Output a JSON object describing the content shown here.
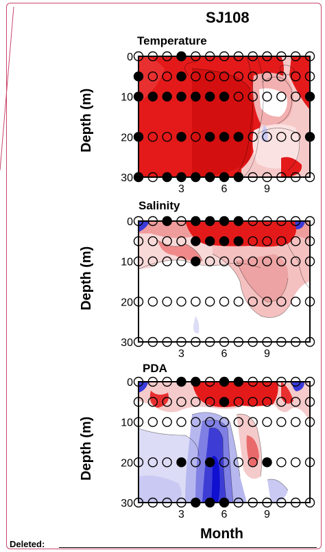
{
  "site_title": "SJ108",
  "panels": [
    {
      "title": "Temperature",
      "ylabel": "Depth (m)"
    },
    {
      "title": "Salinity",
      "ylabel": "Depth (m)"
    },
    {
      "title": "PDA",
      "ylabel": "Depth (m)"
    }
  ],
  "xlabel": "Month",
  "deleted_label": "Deleted:",
  "colors": {
    "high": "#e81010",
    "low": "#1010e0",
    "mid": "#ffffff",
    "border": "#c9446a"
  },
  "chart_data": [
    {
      "type": "heatmap",
      "title": "Temperature",
      "ylabel": "Depth (m)",
      "xlim": [
        0,
        12
      ],
      "ylim": [
        30,
        0
      ],
      "xticks": [
        3,
        6,
        9
      ],
      "yticks": [
        0,
        10,
        20,
        30
      ],
      "sample_depths": [
        0,
        5,
        10,
        20,
        30
      ],
      "sample_months": [
        0,
        1,
        2,
        3,
        4,
        5,
        6,
        7,
        8,
        9,
        10,
        11,
        12
      ],
      "filled_samples": [
        [
          3,
          0
        ],
        [
          0,
          5
        ],
        [
          3,
          5
        ],
        [
          0,
          10
        ],
        [
          1,
          10
        ],
        [
          2,
          10
        ],
        [
          3,
          10
        ],
        [
          4,
          10
        ],
        [
          5,
          10
        ],
        [
          6,
          10
        ],
        [
          12,
          10
        ],
        [
          0,
          20
        ],
        [
          3,
          20
        ],
        [
          5,
          20
        ],
        [
          6,
          20
        ],
        [
          7,
          20
        ],
        [
          12,
          20
        ],
        [
          0,
          30
        ],
        [
          2,
          30
        ],
        [
          3,
          30
        ],
        [
          4,
          30
        ],
        [
          5,
          30
        ],
        [
          6,
          30
        ],
        [
          7,
          30
        ]
      ]
    },
    {
      "type": "heatmap",
      "title": "Salinity",
      "ylabel": "Depth (m)",
      "xlim": [
        0,
        12
      ],
      "ylim": [
        30,
        0
      ],
      "xticks": [
        3,
        6,
        9
      ],
      "yticks": [
        0,
        10,
        20,
        30
      ],
      "sample_depths": [
        0,
        5,
        10,
        20,
        30
      ],
      "sample_months": [
        0,
        1,
        2,
        3,
        4,
        5,
        6,
        7,
        8,
        9,
        10,
        11,
        12
      ],
      "filled_samples": [
        [
          2,
          0
        ],
        [
          4,
          0
        ],
        [
          5,
          0
        ],
        [
          6,
          0
        ],
        [
          7,
          0
        ],
        [
          4,
          5
        ],
        [
          5,
          5
        ],
        [
          6,
          5
        ],
        [
          7,
          5
        ],
        [
          4,
          10
        ]
      ]
    },
    {
      "type": "heatmap",
      "title": "PDA",
      "ylabel": "Depth (m)",
      "xlim": [
        0,
        12
      ],
      "ylim": [
        30,
        0
      ],
      "xticks": [
        3,
        6,
        9
      ],
      "yticks": [
        0,
        10,
        20,
        30
      ],
      "sample_depths": [
        0,
        5,
        10,
        20,
        30
      ],
      "sample_months": [
        0,
        1,
        2,
        3,
        4,
        5,
        6,
        7,
        8,
        9,
        10,
        11,
        12
      ],
      "filled_samples": [
        [
          3,
          0
        ],
        [
          4,
          0
        ],
        [
          6,
          0
        ],
        [
          7,
          0
        ],
        [
          6,
          5
        ],
        [
          3,
          20
        ],
        [
          5,
          20
        ],
        [
          9,
          20
        ],
        [
          4,
          30
        ],
        [
          5,
          30
        ],
        [
          6,
          30
        ]
      ]
    }
  ]
}
